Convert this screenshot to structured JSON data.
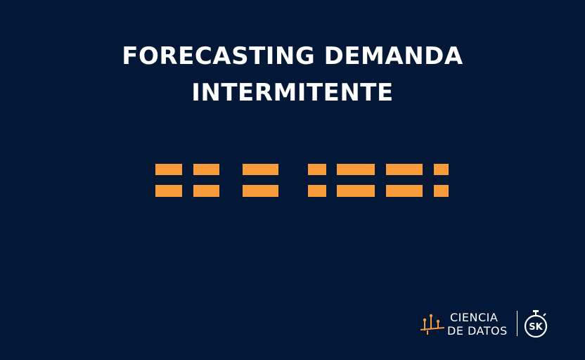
{
  "title": {
    "line1": "FORECASTING DEMANDA",
    "line2": "INTERMITENTE"
  },
  "colors": {
    "background": "#031736",
    "accent": "#f99a3b",
    "text": "#ffffff"
  },
  "logo": {
    "line1": "CIENCIA",
    "line2": "DE DATOS",
    "badge_text": "SK",
    "icon": "chart-network-icon",
    "badge_icon": "stopwatch-icon"
  }
}
